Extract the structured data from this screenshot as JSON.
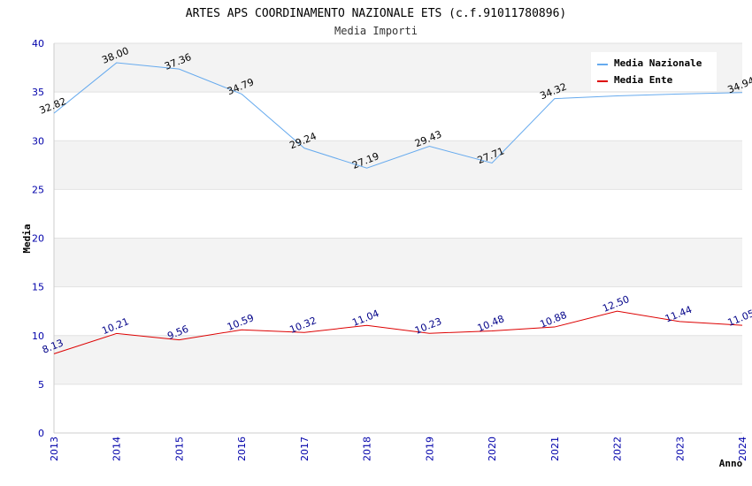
{
  "chart_data": {
    "type": "line",
    "title": "ARTES APS COORDINAMENTO NAZIONALE ETS (c.f.91011780896)",
    "subtitle": "Media Importi",
    "xlabel": "Anno",
    "ylabel": "Media",
    "ylim": [
      0,
      40
    ],
    "yticks": [
      "0",
      "5",
      "10",
      "15",
      "20",
      "25",
      "30",
      "35",
      "40"
    ],
    "categories": [
      "2013",
      "2014",
      "2015",
      "2016",
      "2017",
      "2018",
      "2019",
      "2020",
      "2021",
      "2022",
      "2023",
      "2024"
    ],
    "series": [
      {
        "name": "Media Nazionale",
        "color": "#66aaee",
        "label_color": "#000000",
        "values": [
          32.82,
          38.0,
          37.36,
          34.79,
          29.24,
          27.19,
          29.43,
          27.71,
          34.32,
          null,
          null,
          34.94
        ],
        "line_values": [
          32.82,
          38.0,
          37.36,
          34.79,
          29.24,
          27.19,
          29.43,
          27.71,
          34.32,
          34.6,
          34.8,
          34.94
        ],
        "labels": [
          "32.82",
          "38.00",
          "37.36",
          "34.79",
          "29.24",
          "27.19",
          "29.43",
          "27.71",
          "34.32",
          "",
          "",
          "34.94"
        ]
      },
      {
        "name": "Media Ente",
        "color": "#dd0000",
        "label_color": "#000088",
        "values": [
          8.13,
          10.21,
          9.56,
          10.59,
          10.32,
          11.04,
          10.23,
          10.48,
          10.88,
          12.5,
          11.44,
          11.05
        ],
        "line_values": [
          8.13,
          10.21,
          9.56,
          10.59,
          10.32,
          11.04,
          10.23,
          10.48,
          10.88,
          12.5,
          11.44,
          11.05
        ],
        "labels": [
          "8.13",
          "10.21",
          "9.56",
          "10.59",
          "10.32",
          "11.04",
          "10.23",
          "10.48",
          "10.88",
          "12.50",
          "11.44",
          "11.05"
        ]
      }
    ],
    "grid": true,
    "legend_position": "top-right"
  }
}
